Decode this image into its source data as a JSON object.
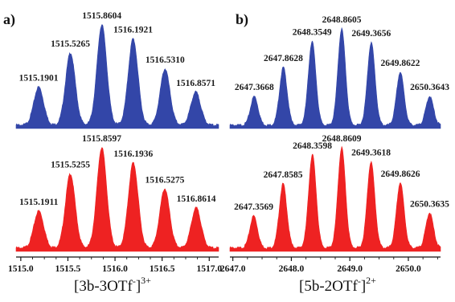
{
  "chart_data": [
    {
      "type": "area",
      "panel_letter": "a)",
      "formula": {
        "main": "[3b-3OTf",
        "minus": "-",
        "close": "]",
        "charge": "3+"
      },
      "xlim": [
        1514.95,
        1517.1
      ],
      "ticks": [
        1515.0,
        1515.5,
        1516.0,
        1516.5,
        1517.0
      ],
      "tick_labels": [
        "1515.0",
        "1515.5",
        "1516.0",
        "1516.5",
        "1517.0"
      ],
      "series": [
        {
          "color": "#3346a8",
          "peaks": [
            {
              "x": 1515.1901,
              "label": "1515.1901",
              "y": 0.38
            },
            {
              "x": 1515.5265,
              "label": "1515.5265",
              "y": 0.72
            },
            {
              "x": 1515.8604,
              "label": "1515.8604",
              "y": 1.0
            },
            {
              "x": 1516.1921,
              "label": "1516.1921",
              "y": 0.86
            },
            {
              "x": 1516.531,
              "label": "1516.5310",
              "y": 0.56
            },
            {
              "x": 1516.8571,
              "label": "1516.8571",
              "y": 0.33
            }
          ]
        },
        {
          "color": "#ee2222",
          "peaks": [
            {
              "x": 1515.1911,
              "label": "1515.1911",
              "y": 0.37
            },
            {
              "x": 1515.5255,
              "label": "1515.5255",
              "y": 0.74
            },
            {
              "x": 1515.8597,
              "label": "1515.8597",
              "y": 1.0
            },
            {
              "x": 1516.1936,
              "label": "1516.1936",
              "y": 0.85
            },
            {
              "x": 1516.5275,
              "label": "1516.5275",
              "y": 0.59
            },
            {
              "x": 1516.8614,
              "label": "1516.8614",
              "y": 0.4
            }
          ]
        }
      ]
    },
    {
      "type": "area",
      "panel_letter": "b)",
      "formula": {
        "main": "[5b-2OTf",
        "minus": "-",
        "close": "]",
        "charge": "2+"
      },
      "xlim": [
        2646.95,
        2650.55
      ],
      "ticks": [
        2647.0,
        2648.0,
        2649.0,
        2650.0
      ],
      "tick_labels": [
        "2647.0",
        "2648.0",
        "2649.0",
        "2650.0"
      ],
      "series": [
        {
          "color": "#3346a8",
          "peaks": [
            {
              "x": 2647.3668,
              "label": "2647.3668",
              "y": 0.3
            },
            {
              "x": 2647.8628,
              "label": "2647.8628",
              "y": 0.6
            },
            {
              "x": 2648.3549,
              "label": "2648.3549",
              "y": 0.87
            },
            {
              "x": 2648.8605,
              "label": "2648.8605",
              "y": 1.0
            },
            {
              "x": 2649.3656,
              "label": "2649.3656",
              "y": 0.86
            },
            {
              "x": 2649.8622,
              "label": "2649.8622",
              "y": 0.55
            },
            {
              "x": 2650.3643,
              "label": "2650.3643",
              "y": 0.3
            }
          ]
        },
        {
          "color": "#ee2222",
          "peaks": [
            {
              "x": 2647.3569,
              "label": "2647.3569",
              "y": 0.32
            },
            {
              "x": 2647.8585,
              "label": "2647.8585",
              "y": 0.64
            },
            {
              "x": 2648.3598,
              "label": "2648.3598",
              "y": 0.93
            },
            {
              "x": 2648.8609,
              "label": "2648.8609",
              "y": 1.0
            },
            {
              "x": 2649.3618,
              "label": "2649.3618",
              "y": 0.86
            },
            {
              "x": 2649.8626,
              "label": "2649.8626",
              "y": 0.65
            },
            {
              "x": 2650.3635,
              "label": "2650.3635",
              "y": 0.35
            }
          ]
        }
      ]
    }
  ]
}
